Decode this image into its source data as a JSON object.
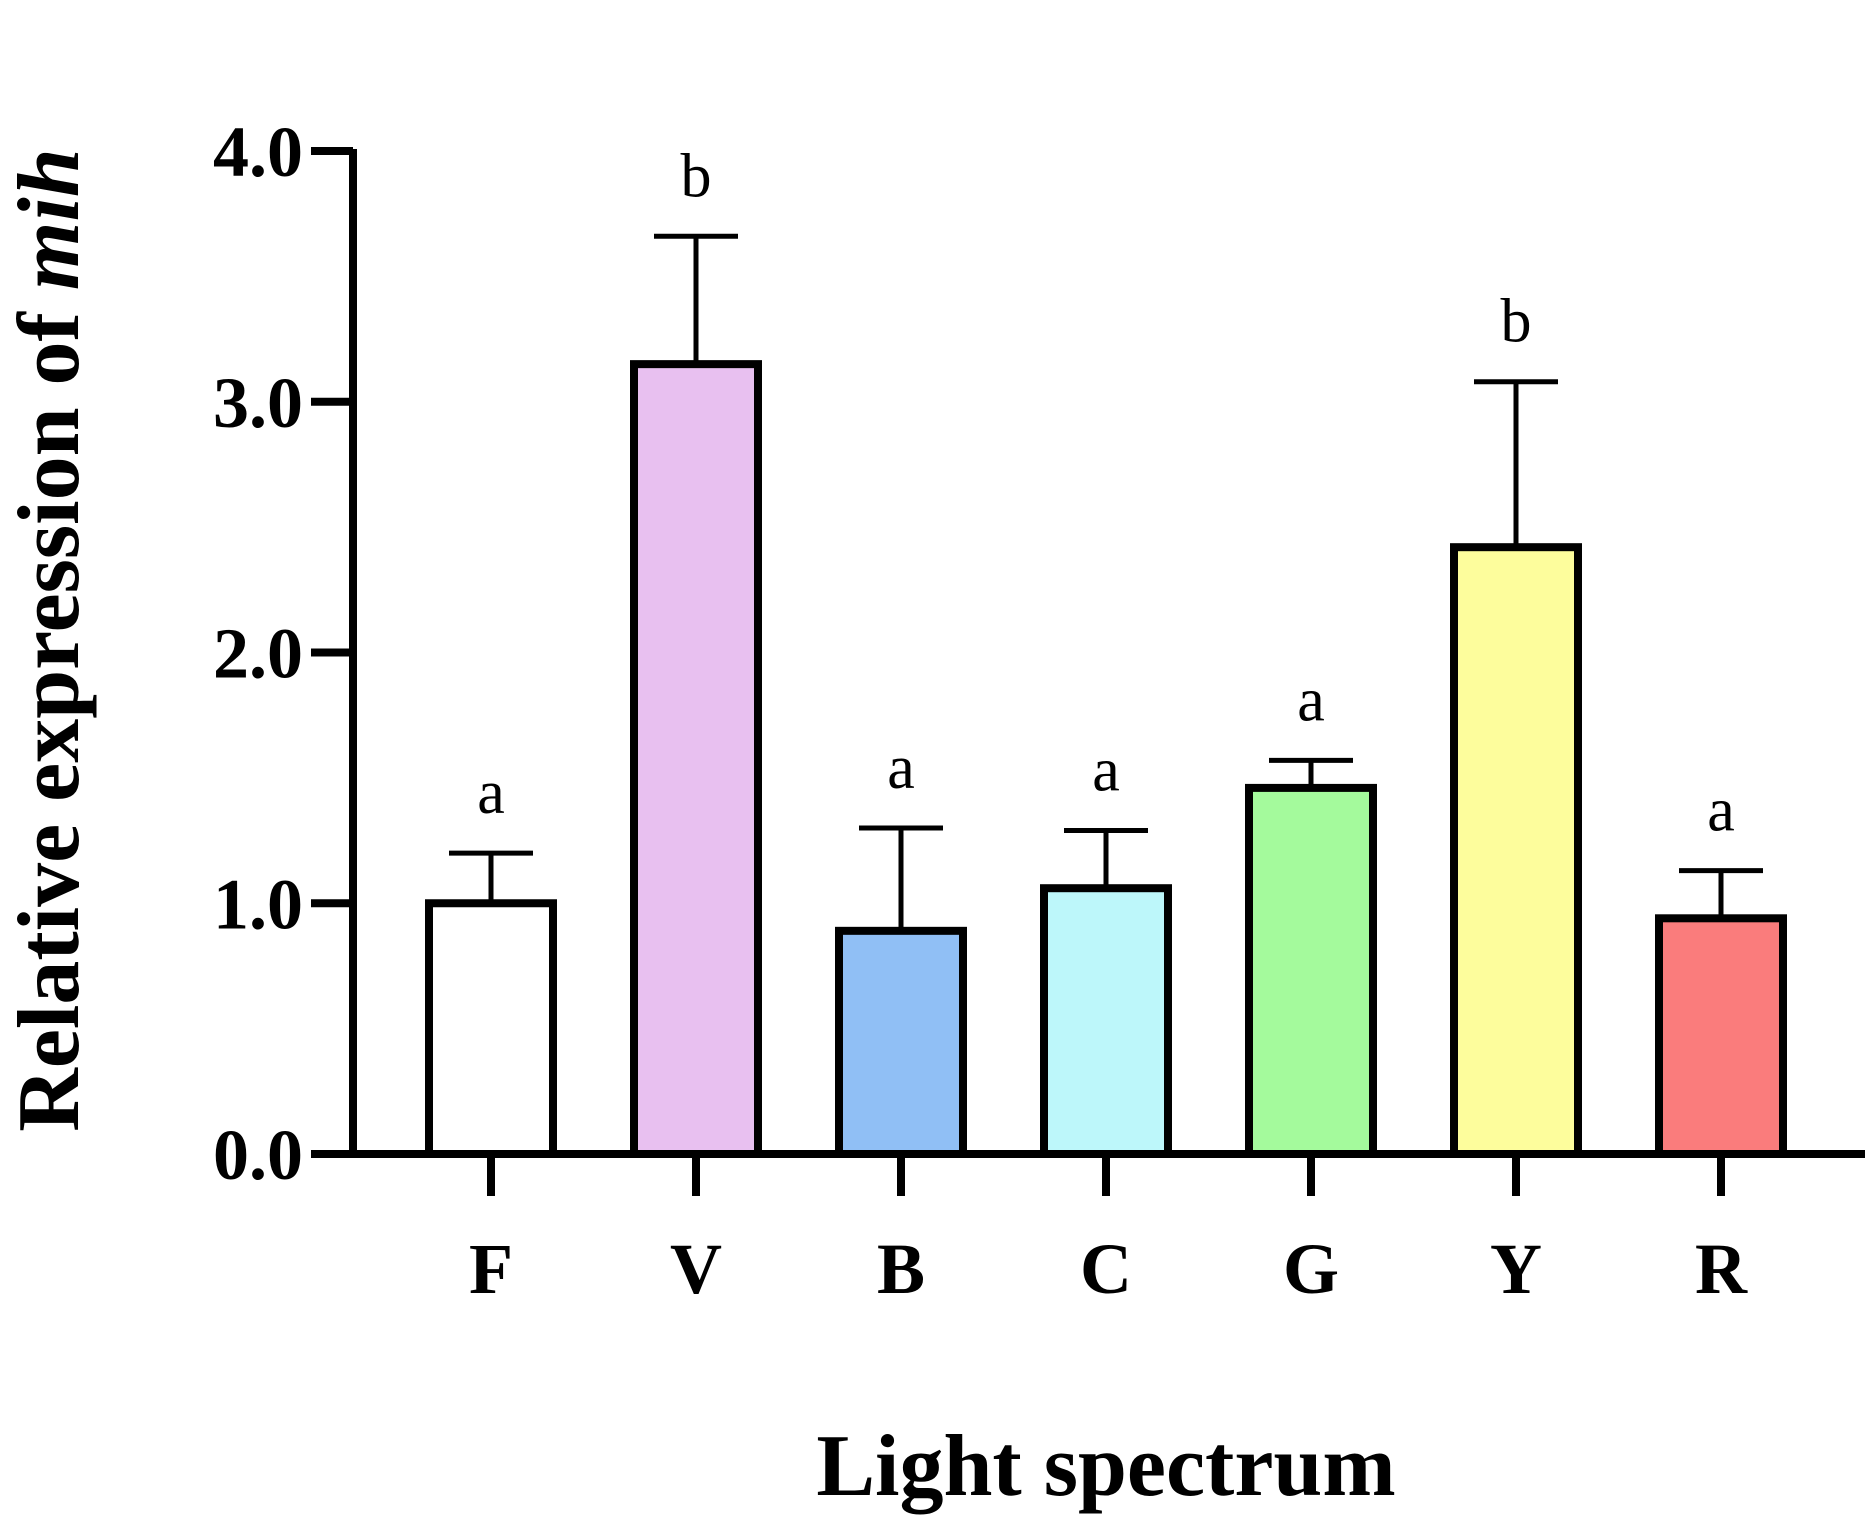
{
  "chart_data": {
    "type": "bar",
    "categories": [
      "F",
      "V",
      "B",
      "C",
      "G",
      "Y",
      "R"
    ],
    "values": [
      1.0,
      3.15,
      0.89,
      1.06,
      1.46,
      2.42,
      0.94
    ],
    "errors": [
      0.2,
      0.51,
      0.41,
      0.23,
      0.11,
      0.66,
      0.19
    ],
    "significance": [
      "a",
      "b",
      "a",
      "a",
      "a",
      "b",
      "a"
    ],
    "colors": [
      "#ffffff",
      "#e8c0f0",
      "#90bff5",
      "#bdf7fa",
      "#a4fa9c",
      "#fdfd9c",
      "#fa7c7c"
    ],
    "xlabel": "Light spectrum",
    "ylabel_prefix": "Relative expression of ",
    "ylabel_gene": "mih",
    "ylim": [
      0,
      4
    ],
    "yticks": [
      "0.0",
      "1.0",
      "2.0",
      "3.0",
      "4.0"
    ],
    "grid": false,
    "legend": "none"
  }
}
